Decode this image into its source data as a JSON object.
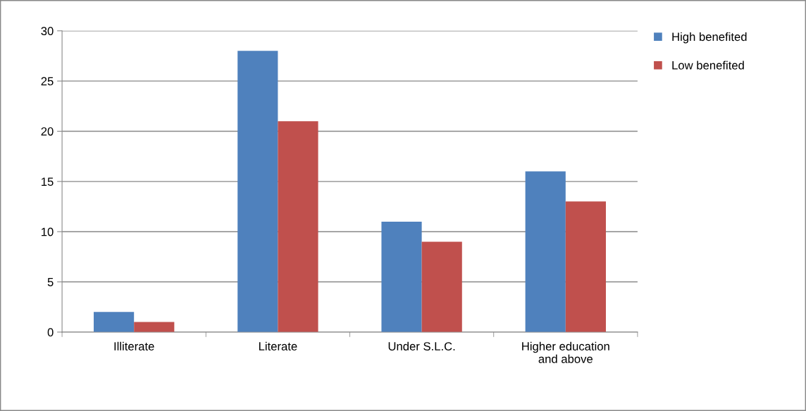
{
  "chart_data": {
    "type": "bar",
    "categories": [
      "Illiterate",
      "Literate",
      "Under S.L.C.",
      "Higher education\nand above"
    ],
    "series": [
      {
        "name": "High benefited",
        "color": "#4f81bd",
        "values": [
          2,
          28,
          11,
          16
        ]
      },
      {
        "name": "Low benefited",
        "color": "#c0504d",
        "values": [
          1,
          21,
          9,
          13
        ]
      }
    ],
    "ylim": [
      0,
      30
    ],
    "yticks": [
      0,
      5,
      10,
      15,
      20,
      25,
      30
    ],
    "grid": "y",
    "legend": "top right"
  }
}
